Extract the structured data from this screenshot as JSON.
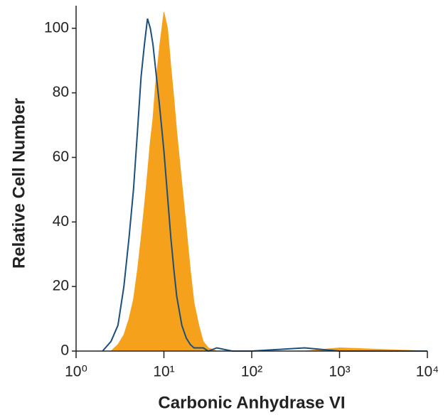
{
  "chart_data": {
    "type": "histogram",
    "x_label": "Carbonic Anhydrase VI",
    "y_label": "Relative Cell Number",
    "x": [
      2,
      2.5,
      3,
      3.5,
      4,
      4.5,
      5,
      5.5,
      6,
      6.5,
      7,
      7.5,
      8,
      9,
      10,
      11,
      12,
      13,
      14,
      16,
      18,
      20,
      22,
      25,
      28,
      32,
      40,
      60,
      100,
      400,
      1000,
      10000
    ],
    "series": [
      {
        "color": "#f5a11c",
        "fill": true,
        "values": [
          0,
          0,
          2,
          5,
          10,
          16,
          25,
          35,
          45,
          55,
          65,
          72,
          82,
          95,
          105,
          100,
          88,
          78,
          68,
          52,
          38,
          25,
          15,
          8,
          3,
          1,
          0,
          0,
          0,
          0,
          1,
          0
        ]
      },
      {
        "color": "#1d4f7c",
        "fill": false,
        "values": [
          0,
          3,
          8,
          20,
          35,
          50,
          68,
          85,
          95,
          103,
          100,
          95,
          88,
          75,
          62,
          48,
          35,
          25,
          17,
          8,
          4,
          2,
          1,
          1,
          1,
          0,
          1,
          0,
          0,
          1,
          0,
          0
        ]
      }
    ],
    "xlim": [
      1,
      10000
    ],
    "xscale": "log",
    "xticks": [
      {
        "value": 1,
        "label": "10⁰"
      },
      {
        "value": 10,
        "label": "10¹"
      },
      {
        "value": 100,
        "label": "10²"
      },
      {
        "value": 1000,
        "label": "10³"
      },
      {
        "value": 10000,
        "label": "10⁴"
      }
    ],
    "ylim": [
      0,
      107
    ],
    "yticks": [
      0,
      20,
      40,
      60,
      80,
      100
    ]
  }
}
